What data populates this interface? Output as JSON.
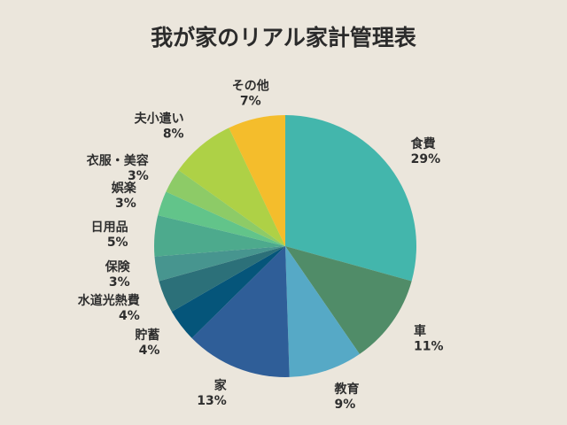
{
  "chart_data": {
    "type": "pie",
    "title": "我が家のリアル家計管理表",
    "slices": [
      {
        "label": "食費",
        "value": 29,
        "percent_label": "29%",
        "color": "#43b6ac"
      },
      {
        "label": "車",
        "value": 11,
        "percent_label": "11%",
        "color": "#508c68"
      },
      {
        "label": "教育",
        "value": 9,
        "percent_label": "9%",
        "color": "#56a9c6"
      },
      {
        "label": "家",
        "value": 13,
        "percent_label": "13%",
        "color": "#2f5e98"
      },
      {
        "label": "貯蓄",
        "value": 4,
        "percent_label": "4%",
        "color": "#05557a"
      },
      {
        "label": "水道光熱費",
        "value": 4,
        "percent_label": "4%",
        "color": "#2c7079"
      },
      {
        "label": "保険",
        "value": 3,
        "percent_label": "3%",
        "color": "#47958f"
      },
      {
        "label": "日用品",
        "value": 5,
        "percent_label": "5%",
        "color": "#4daa8d"
      },
      {
        "label": "娯楽",
        "value": 3,
        "percent_label": "3%",
        "color": "#62c48a"
      },
      {
        "label": "衣服・美容",
        "value": 3,
        "percent_label": "3%",
        "color": "#8dcb67"
      },
      {
        "label": "夫小遣い",
        "value": 8,
        "percent_label": "8%",
        "color": "#aed146"
      },
      {
        "label": "その他",
        "value": 7,
        "percent_label": "7%",
        "color": "#f4bd2c"
      }
    ]
  }
}
